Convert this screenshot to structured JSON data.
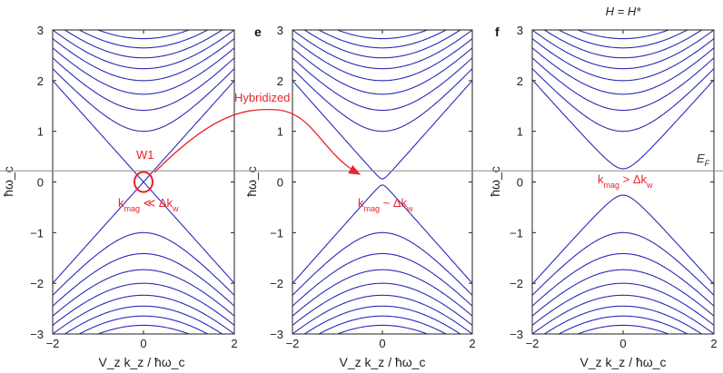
{
  "chart_data": [
    {
      "type": "line",
      "panel_label": "",
      "title": "",
      "xlabel": "V_z k_z / ħω_c",
      "ylabel": "ħω_c",
      "xlim": [
        -2,
        2
      ],
      "ylim": [
        -3,
        3
      ],
      "xticks": [
        "-2",
        "0",
        "2"
      ],
      "yticks": [
        "-3",
        "-2",
        "-1",
        "0",
        "1",
        "2",
        "3"
      ],
      "fermi_level": 0.22,
      "gap": 0.0,
      "landau_levels_n": [
        1,
        2,
        3,
        4,
        5,
        6,
        7,
        8,
        9
      ],
      "band_color": "#2a2ab8",
      "annotations": {
        "circle": "W1",
        "relation_k": "k",
        "relation_k_sub": "mag",
        "relation_op": " ≪ Δk",
        "relation_sub": "w"
      }
    },
    {
      "type": "line",
      "panel_label": "e",
      "title": "",
      "xlabel": "V_z k_z / ħω_c",
      "ylabel": "ħω_c",
      "xlim": [
        -2,
        2
      ],
      "ylim": [
        -3,
        3
      ],
      "xticks": [
        "-2",
        "0",
        "2"
      ],
      "yticks": [
        "-3",
        "-2",
        "-1",
        "0",
        "1",
        "2",
        "3"
      ],
      "fermi_level": 0.22,
      "gap": 0.06,
      "landau_levels_n": [
        1,
        2,
        3,
        4,
        5,
        6,
        7,
        8,
        9
      ],
      "band_color": "#2a2ab8",
      "annotations": {
        "arrow_label": "Hybridized",
        "relation_k": "k",
        "relation_k_sub": "mag",
        "relation_op": " ~ Δk",
        "relation_sub": "w"
      }
    },
    {
      "type": "line",
      "panel_label": "f",
      "title": "H = H*",
      "xlabel": "V_z k_z / ħω_c",
      "ylabel": "ħω_c",
      "xlim": [
        -2,
        2
      ],
      "ylim": [
        -3,
        3
      ],
      "xticks": [
        "-2",
        "0",
        "2"
      ],
      "yticks": [
        "-3",
        "-2",
        "-1",
        "0",
        "1",
        "2",
        "3"
      ],
      "fermi_level": 0.22,
      "fermi_label": "E",
      "fermi_label_sub": "F",
      "gap": 0.26,
      "landau_levels_n": [
        1,
        2,
        3,
        4,
        5,
        6,
        7,
        8,
        9
      ],
      "band_color": "#2a2ab8",
      "annotations": {
        "relation_k": "k",
        "relation_k_sub": "mag",
        "relation_op": " > Δk",
        "relation_sub": "w"
      }
    }
  ],
  "colors": {
    "bands": "#2a2ab8",
    "annotation": "#e8242b",
    "fermi": "#8c8c8c"
  }
}
